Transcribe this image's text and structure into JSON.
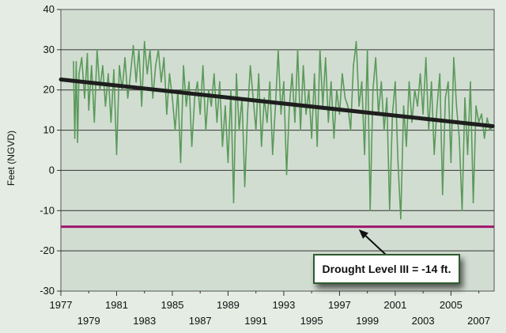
{
  "chart_data": {
    "type": "line",
    "title": "",
    "xlabel": "",
    "ylabel": "Feet (NGVD)",
    "xlim": [
      1977,
      2008.1
    ],
    "ylim": [
      -30,
      40
    ],
    "yticks": [
      40,
      30,
      20,
      10,
      0,
      -10,
      -20,
      -30
    ],
    "xticks_top_row": [
      1977,
      1981,
      1985,
      1989,
      1993,
      1997,
      2001,
      2005
    ],
    "xticks_bottom_row": [
      1979,
      1983,
      1987,
      1991,
      1995,
      1999,
      2003,
      2007
    ],
    "grid": true,
    "series": [
      {
        "color": "#5a9a5a",
        "x": [
          1977.9,
          1978.0,
          1978.1,
          1978.2,
          1978.3,
          1978.5,
          1978.7,
          1978.9,
          1979.0,
          1979.2,
          1979.4,
          1979.6,
          1979.8,
          1980.0,
          1980.2,
          1980.4,
          1980.6,
          1980.8,
          1981.0,
          1981.2,
          1981.4,
          1981.6,
          1981.8,
          1982.0,
          1982.2,
          1982.4,
          1982.6,
          1982.8,
          1983.0,
          1983.2,
          1983.4,
          1983.6,
          1983.8,
          1984.0,
          1984.2,
          1984.4,
          1984.6,
          1984.8,
          1985.0,
          1985.2,
          1985.4,
          1985.6,
          1985.8,
          1986.0,
          1986.2,
          1986.4,
          1986.6,
          1986.8,
          1987.0,
          1987.2,
          1987.4,
          1987.6,
          1987.8,
          1988.0,
          1988.2,
          1988.4,
          1988.6,
          1988.8,
          1989.0,
          1989.2,
          1989.4,
          1989.6,
          1989.8,
          1990.0,
          1990.2,
          1990.4,
          1990.6,
          1990.8,
          1991.0,
          1991.2,
          1991.4,
          1991.6,
          1991.8,
          1992.0,
          1992.2,
          1992.4,
          1992.6,
          1992.8,
          1993.0,
          1993.2,
          1993.4,
          1993.6,
          1993.8,
          1994.0,
          1994.2,
          1994.4,
          1994.6,
          1994.8,
          1995.0,
          1995.2,
          1995.4,
          1995.6,
          1995.8,
          1996.0,
          1996.2,
          1996.4,
          1996.6,
          1996.8,
          1997.0,
          1997.2,
          1997.4,
          1997.6,
          1997.8,
          1998.0,
          1998.2,
          1998.4,
          1998.6,
          1998.8,
          1999.0,
          1999.2,
          1999.4,
          1999.6,
          1999.8,
          2000.0,
          2000.2,
          2000.4,
          2000.6,
          2000.8,
          2001.0,
          2001.2,
          2001.4,
          2001.6,
          2001.8,
          2002.0,
          2002.2,
          2002.4,
          2002.6,
          2002.8,
          2003.0,
          2003.2,
          2003.4,
          2003.6,
          2003.8,
          2004.0,
          2004.2,
          2004.4,
          2004.6,
          2004.8,
          2005.0,
          2005.2,
          2005.4,
          2005.6,
          2005.8,
          2006.0,
          2006.2,
          2006.4,
          2006.6,
          2006.8,
          2007.0,
          2007.2,
          2007.4,
          2007.6,
          2007.8,
          2008.0
        ],
        "values": [
          27,
          8,
          27,
          7,
          24,
          28,
          18,
          29,
          15,
          26,
          12,
          30,
          20,
          26,
          16,
          24,
          12,
          25,
          4,
          26,
          20,
          28,
          18,
          24,
          31,
          22,
          30,
          16,
          32,
          24,
          30,
          18,
          26,
          30,
          22,
          28,
          14,
          24,
          18,
          10,
          20,
          2,
          26,
          16,
          22,
          6,
          18,
          22,
          14,
          26,
          10,
          20,
          16,
          24,
          12,
          22,
          6,
          16,
          2,
          20,
          -8,
          24,
          10,
          18,
          -4,
          14,
          26,
          18,
          10,
          24,
          6,
          18,
          12,
          22,
          4,
          16,
          30,
          14,
          22,
          -1,
          16,
          24,
          12,
          30,
          10,
          26,
          14,
          20,
          8,
          24,
          6,
          30,
          16,
          28,
          12,
          22,
          8,
          20,
          14,
          24,
          18,
          16,
          10,
          26,
          32,
          16,
          22,
          4,
          30,
          -10,
          20,
          28,
          14,
          22,
          10,
          18,
          -10,
          14,
          22,
          2,
          -12,
          16,
          6,
          22,
          12,
          20,
          16,
          24,
          14,
          28,
          10,
          22,
          4,
          16,
          24,
          -6,
          18,
          22,
          2,
          28,
          16,
          8,
          -10,
          18,
          4,
          22,
          -8,
          16,
          12,
          14,
          8,
          13,
          10,
          11
        ]
      },
      {
        "name": "trend",
        "color": "#1e1e1e",
        "x": [
          1977,
          2008
        ],
        "values": [
          22.6,
          11.0
        ]
      }
    ],
    "reference_line": {
      "y": -14,
      "color": "#a0166e"
    },
    "annotation": {
      "text": "Drought Level III = -14 ft.",
      "target_x": 1998.3,
      "target_y": -14
    }
  }
}
